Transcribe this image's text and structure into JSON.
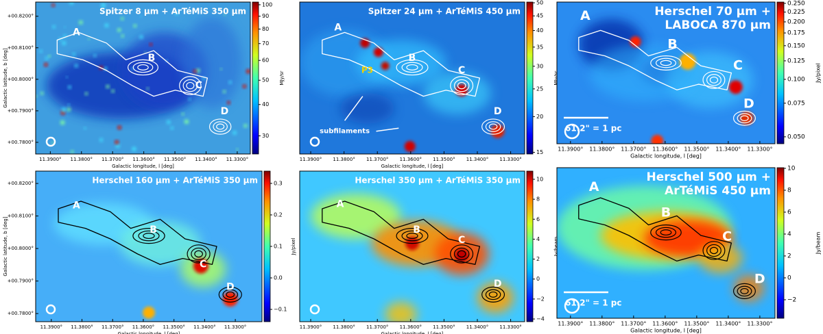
{
  "chart_data": [
    {
      "type": "image",
      "title": "Spitzer 8 µm + ArTéMiS 350 µm",
      "xlabel": "Galactic longitude, l [deg]",
      "ylabel": "Galactic latitude, b [deg]",
      "xlim": [
        11.3947,
        11.3258
      ],
      "xticks": [
        {
          "value": 11.39,
          "label": "11.3900°"
        },
        {
          "value": 11.38,
          "label": "11.3800°"
        },
        {
          "value": 11.37,
          "label": "11.3700°"
        },
        {
          "value": 11.36,
          "label": "11.3600°"
        },
        {
          "value": 11.35,
          "label": "11.3500°"
        },
        {
          "value": 11.34,
          "label": "11.3400°"
        },
        {
          "value": 11.33,
          "label": "11.3300°"
        }
      ],
      "ylim": [
        0.8245,
        0.7763
      ],
      "yticks": [
        {
          "value": 0.82,
          "label": "+00.8200°"
        },
        {
          "value": 0.81,
          "label": "+00.8100°"
        },
        {
          "value": 0.8,
          "label": "+00.8000°"
        },
        {
          "value": 0.79,
          "label": "+00.7900°"
        },
        {
          "value": 0.78,
          "label": "+00.7800°"
        }
      ],
      "colorbar": {
        "label": "MJy/sr",
        "scale": "log",
        "lim": [
          25.4,
          102.5
        ],
        "ticks": [
          30,
          40,
          50,
          60,
          70,
          80,
          90,
          100
        ]
      },
      "labels": [
        "A",
        "B",
        "C",
        "D"
      ]
    },
    {
      "type": "image",
      "title": "Spitzer 24 µm + ArTéMiS 450 µm",
      "xlabel": "Galactic longitude, l [deg]",
      "xlim": [
        11.3933,
        11.3258
      ],
      "xticks": [
        {
          "value": 11.39,
          "label": "11.3900°"
        },
        {
          "value": 11.38,
          "label": "11.3800°"
        },
        {
          "value": 11.37,
          "label": "11.3700°"
        },
        {
          "value": 11.36,
          "label": "11.3600°"
        },
        {
          "value": 11.35,
          "label": "11.3500°"
        },
        {
          "value": 11.34,
          "label": "11.3400°"
        },
        {
          "value": 11.33,
          "label": "11.3300°"
        }
      ],
      "colorbar": {
        "label": "MJy/sr",
        "scale": "log",
        "lim": [
          14.8,
          50.3
        ],
        "ticks": [
          15,
          20,
          25,
          30,
          35,
          40,
          45,
          50
        ]
      },
      "labels": [
        "A",
        "B",
        "C",
        "D"
      ],
      "annotations": [
        "P3",
        "subfilaments"
      ]
    },
    {
      "type": "image",
      "title": [
        "Herschel 70 µm +",
        "LABOCA 870 µm"
      ],
      "xlabel": "Galactic longitude, l [deg]",
      "xlim": [
        11.3943,
        11.3252
      ],
      "xticks": [
        {
          "value": 11.39,
          "label": "11.3900°"
        },
        {
          "value": 11.38,
          "label": "11.3800°"
        },
        {
          "value": 11.37,
          "label": "11.3700°"
        },
        {
          "value": 11.36,
          "label": "11.3600°"
        },
        {
          "value": 11.35,
          "label": "11.3500°"
        },
        {
          "value": 11.34,
          "label": "11.3400°"
        },
        {
          "value": 11.33,
          "label": "11.3300°"
        }
      ],
      "colorbar": {
        "label": "Jy/pixel",
        "scale": "log",
        "lim": [
          0.046,
          0.254
        ],
        "ticks": [
          {
            "value": 0.05,
            "label": "0.050"
          },
          {
            "value": 0.075,
            "label": "0.075"
          },
          {
            "value": 0.1,
            "label": "0.100"
          },
          {
            "value": 0.125,
            "label": "0.125"
          },
          {
            "value": 0.15,
            "label": "0.150"
          },
          {
            "value": 0.175,
            "label": "0.175"
          },
          {
            "value": 0.2,
            "label": "0.200"
          },
          {
            "value": 0.225,
            "label": "0.225"
          },
          {
            "value": 0.25,
            "label": "0.250"
          }
        ]
      },
      "labels": [
        "A",
        "B",
        "C",
        "D"
      ],
      "scalebar": "61.2\" = 1 pc"
    },
    {
      "type": "image",
      "title": "Herschel 160 µm + ArTéMiS 350 µm",
      "xlabel": "Galactic longitude, l [deg]",
      "ylabel": "Galactic latitude, b [deg]",
      "xlim": [
        11.3951,
        11.3213
      ],
      "xticks": [
        {
          "value": 11.39,
          "label": "11.3900°"
        },
        {
          "value": 11.38,
          "label": "11.3800°"
        },
        {
          "value": 11.37,
          "label": "11.3700°"
        },
        {
          "value": 11.36,
          "label": "11.3600°"
        },
        {
          "value": 11.35,
          "label": "11.3500°"
        },
        {
          "value": 11.34,
          "label": "11.3400°"
        },
        {
          "value": 11.33,
          "label": "11.3300°"
        }
      ],
      "ylim": [
        0.8238,
        0.7775
      ],
      "yticks": [
        {
          "value": 0.82,
          "label": "+00.8200°"
        },
        {
          "value": 0.81,
          "label": "+00.8100°"
        },
        {
          "value": 0.8,
          "label": "+00.8000°"
        },
        {
          "value": 0.79,
          "label": "+00.7900°"
        },
        {
          "value": 0.78,
          "label": "+00.7800°"
        }
      ],
      "colorbar": {
        "label": "Jy/pixel",
        "scale": "linear",
        "lim": [
          -0.139,
          0.339
        ],
        "ticks": [
          {
            "value": -0.1,
            "label": "−0.1"
          },
          {
            "value": 0,
            "label": "0.0"
          },
          0.1,
          0.2,
          0.3
        ]
      },
      "labels": [
        "A",
        "B",
        "C",
        "D"
      ]
    },
    {
      "type": "image",
      "title": "Herschel 350 µm + ArTéMiS 350 µm",
      "xlabel": "Galactic longitude, l [deg]",
      "xlim": [
        11.3933,
        11.3258
      ],
      "xticks": [
        {
          "value": 11.39,
          "label": "11.3900°"
        },
        {
          "value": 11.38,
          "label": "11.3800°"
        },
        {
          "value": 11.37,
          "label": "11.3700°"
        },
        {
          "value": 11.36,
          "label": "11.3600°"
        },
        {
          "value": 11.35,
          "label": "11.3500°"
        },
        {
          "value": 11.34,
          "label": "11.3400°"
        },
        {
          "value": 11.33,
          "label": "11.3300°"
        }
      ],
      "colorbar": {
        "label": "Jy/beam",
        "scale": "linear",
        "lim": [
          -4.27,
          10.82
        ],
        "ticks": [
          {
            "value": -4,
            "label": "−4"
          },
          {
            "value": -2,
            "label": "−2"
          },
          0,
          2,
          4,
          6,
          8,
          10
        ]
      },
      "labels": [
        "A",
        "B",
        "C",
        "D"
      ]
    },
    {
      "type": "image",
      "title": [
        "Herschel 500 µm +",
        "ArTéMiS 450 µm"
      ],
      "xlabel": "Galactic longitude, l [deg]",
      "xlim": [
        11.3943,
        11.3252
      ],
      "xticks": [
        {
          "value": 11.39,
          "label": "11.3900°"
        },
        {
          "value": 11.38,
          "label": "11.3800°"
        },
        {
          "value": 11.37,
          "label": "11.3700°"
        },
        {
          "value": 11.36,
          "label": "11.3600°"
        },
        {
          "value": 11.35,
          "label": "11.3500°"
        },
        {
          "value": 11.34,
          "label": "11.3400°"
        },
        {
          "value": 11.33,
          "label": "11.3300°"
        }
      ],
      "colorbar": {
        "label": "Jy/beam",
        "scale": "linear",
        "lim": [
          -3.69,
          10.06
        ],
        "ticks": [
          {
            "value": -2,
            "label": "−2"
          },
          0,
          2,
          4,
          6,
          8,
          10
        ]
      },
      "labels": [
        "A",
        "B",
        "C",
        "D"
      ],
      "scalebar": "61.2\" = 1 pc"
    }
  ]
}
